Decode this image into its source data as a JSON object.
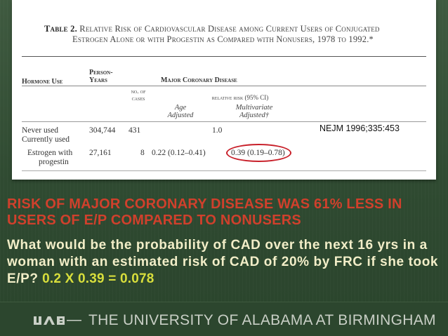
{
  "table": {
    "title_number": "Table 2.",
    "title_line1": "Relative Risk of Cardiovascular Disease among Current Users of Conjugated",
    "title_line2": "Estrogen Alone or with Progestin as Compared with Nonusers, 1978 to 1992.*",
    "header_hormone_use": "Hormone Use",
    "header_person": "Person-",
    "header_years": "Years",
    "header_major": "Major Coronary Disease",
    "sub_no_of": "no. of",
    "sub_cases": "cases",
    "sub_relative_risk": "relative risk (95% CI)",
    "sub_age": "Age",
    "sub_age2": "Adjusted",
    "sub_multi": "Multivariate",
    "sub_multi2": "Adjusted†",
    "rows": [
      {
        "label": "Never used",
        "years": "304,744",
        "cases": "431",
        "age_adj": "",
        "multi_adj": "1.0"
      },
      {
        "label": "Currently used",
        "years": "",
        "cases": "",
        "age_adj": "",
        "multi_adj": ""
      },
      {
        "label": "Estrogen with",
        "label2": "progestin",
        "years": "27,161",
        "cases": "8",
        "age_adj": "0.22 (0.12–0.41)",
        "multi_adj": "0.39 (0.19–0.78)"
      }
    ],
    "highlight_color": "#c8202a"
  },
  "citation": "NEJM 1996;335:453",
  "headline": "Risk of major coronary disease was 61% less in users of E/P compared to nonusers",
  "question": "What would be the probability of CAD over the next 16 yrs in a woman with an estimated risk of CAD of 20% by FRC if she took E/P?",
  "answer": " 0.2 X 0.39 = 0.078",
  "footer": {
    "logo_text": "UAB",
    "institution": "THE UNIVERSITY OF ALABAMA AT BIRMINGHAM"
  },
  "colors": {
    "background": "#2f4a31",
    "headline": "#d0402c",
    "body_text": "#f2eec8",
    "answer": "#d8de3c",
    "footer_text": "#c9cfc6"
  }
}
